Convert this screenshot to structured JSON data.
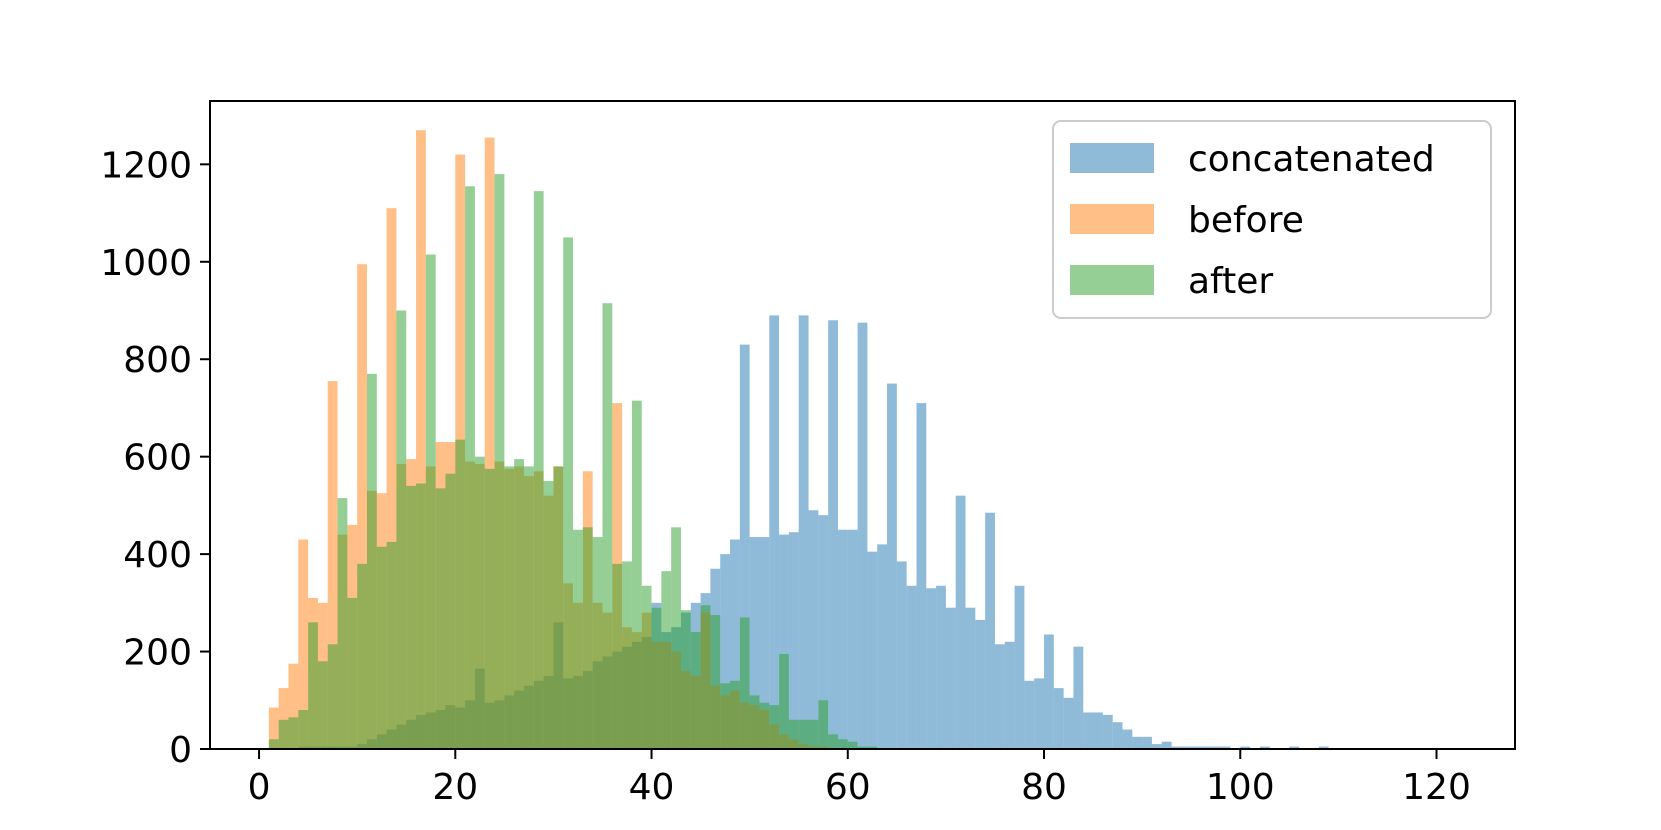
{
  "chart_data": {
    "type": "histogram",
    "title": "",
    "xlabel": "",
    "ylabel": "",
    "xlim": [
      -5,
      128
    ],
    "ylim": [
      0,
      1330
    ],
    "xticks": [
      0,
      20,
      40,
      60,
      80,
      100,
      120
    ],
    "yticks": [
      0,
      200,
      400,
      600,
      800,
      1000,
      1200
    ],
    "grid": false,
    "legend_position": "upper right",
    "bin_width": 1,
    "series": [
      {
        "name": "concatenated",
        "color": "#1f77b4",
        "opacity": 0.5,
        "bin_start": 4,
        "values": [
          5,
          5,
          5,
          5,
          5,
          5,
          10,
          20,
          30,
          40,
          50,
          60,
          70,
          75,
          80,
          90,
          85,
          100,
          165,
          95,
          100,
          110,
          120,
          130,
          140,
          150,
          260,
          145,
          150,
          160,
          180,
          190,
          200,
          210,
          220,
          230,
          300,
          240,
          250,
          280,
          300,
          320,
          370,
          400,
          430,
          830,
          435,
          435,
          890,
          440,
          445,
          890,
          490,
          480,
          880,
          450,
          450,
          875,
          405,
          420,
          750,
          385,
          335,
          710,
          330,
          335,
          290,
          520,
          290,
          265,
          485,
          215,
          220,
          335,
          140,
          145,
          235,
          125,
          105,
          210,
          75,
          75,
          70,
          55,
          40,
          25,
          25,
          10,
          15,
          5,
          5,
          5,
          5,
          5,
          5,
          0,
          5,
          0,
          5,
          0,
          0,
          5,
          0,
          0,
          5
        ]
      },
      {
        "name": "before",
        "color": "#ff7f0e",
        "opacity": 0.5,
        "bin_start": 1,
        "values": [
          85,
          125,
          175,
          430,
          310,
          300,
          755,
          440,
          460,
          995,
          530,
          525,
          1110,
          585,
          595,
          1270,
          580,
          630,
          630,
          1220,
          590,
          585,
          1255,
          590,
          575,
          580,
          560,
          570,
          520,
          580,
          340,
          300,
          570,
          300,
          280,
          710,
          250,
          240,
          280,
          220,
          220,
          200,
          160,
          150,
          280,
          130,
          110,
          120,
          95,
          90,
          80,
          50,
          30,
          20,
          10,
          5,
          5
        ]
      },
      {
        "name": "after",
        "color": "#2ca02c",
        "opacity": 0.5,
        "bin_start": 1,
        "values": [
          20,
          60,
          65,
          80,
          260,
          180,
          215,
          515,
          310,
          380,
          770,
          415,
          425,
          900,
          540,
          545,
          1015,
          535,
          565,
          635,
          1155,
          600,
          575,
          1180,
          580,
          595,
          580,
          1145,
          550,
          580,
          1050,
          450,
          455,
          435,
          915,
          380,
          385,
          715,
          335,
          290,
          365,
          455,
          285,
          240,
          295,
          275,
          135,
          140,
          270,
          110,
          95,
          90,
          195,
          60,
          60,
          60,
          100,
          30,
          20,
          15,
          5,
          5
        ]
      }
    ]
  }
}
